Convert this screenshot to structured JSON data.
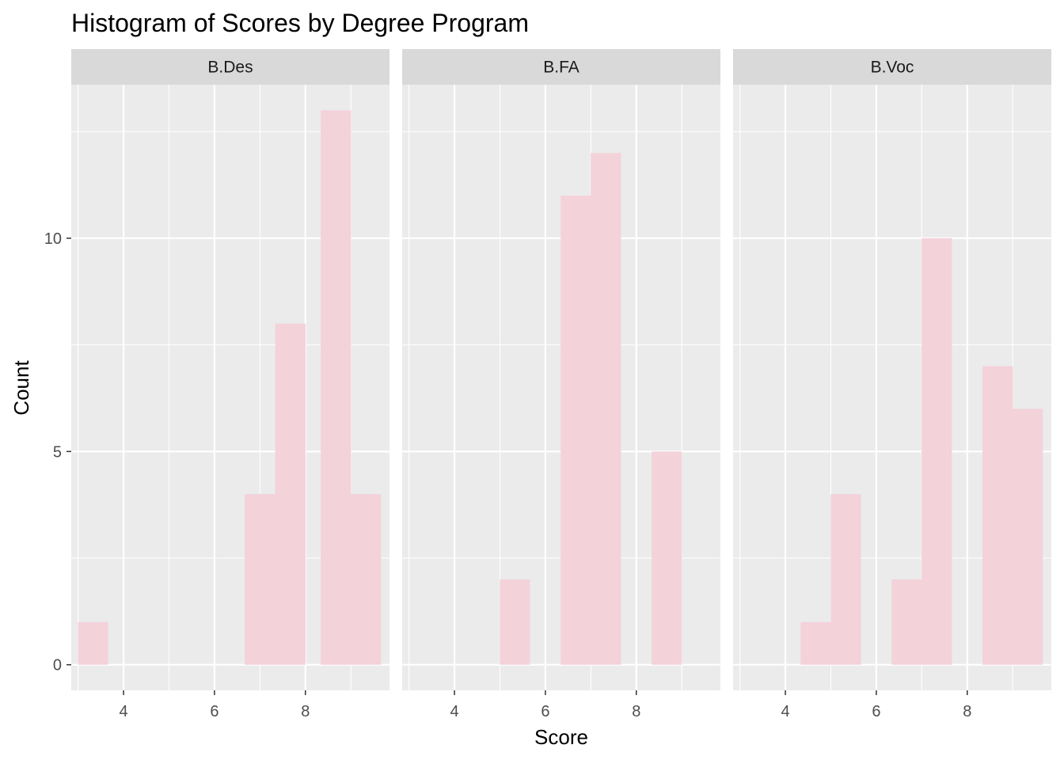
{
  "chart_data": {
    "type": "bar",
    "title": "Histogram of Scores by Degree Program",
    "xlabel": "Score",
    "ylabel": "Count",
    "xlim": [
      2.85,
      9.85
    ],
    "ylim": [
      -0.6,
      13.6
    ],
    "x_ticks": [
      4,
      6,
      8
    ],
    "y_ticks": [
      0,
      5,
      10
    ],
    "bin_width": 0.667,
    "bar_color": "#F4D2DA",
    "panel_background": "#EBEBEB",
    "strip_background": "#D9D9D9",
    "grid": true,
    "facets": [
      {
        "label": "B.Des",
        "bins": [
          {
            "x": 3.33,
            "count": 1
          },
          {
            "x": 7.0,
            "count": 4
          },
          {
            "x": 7.67,
            "count": 8
          },
          {
            "x": 8.67,
            "count": 13
          },
          {
            "x": 9.33,
            "count": 4
          }
        ]
      },
      {
        "label": "B.FA",
        "bins": [
          {
            "x": 5.33,
            "count": 2
          },
          {
            "x": 6.67,
            "count": 11
          },
          {
            "x": 7.33,
            "count": 12
          },
          {
            "x": 8.67,
            "count": 5
          }
        ]
      },
      {
        "label": "B.Voc",
        "bins": [
          {
            "x": 4.67,
            "count": 1
          },
          {
            "x": 5.33,
            "count": 4
          },
          {
            "x": 6.67,
            "count": 2
          },
          {
            "x": 7.33,
            "count": 10
          },
          {
            "x": 8.67,
            "count": 7
          },
          {
            "x": 9.33,
            "count": 6
          }
        ]
      }
    ]
  }
}
